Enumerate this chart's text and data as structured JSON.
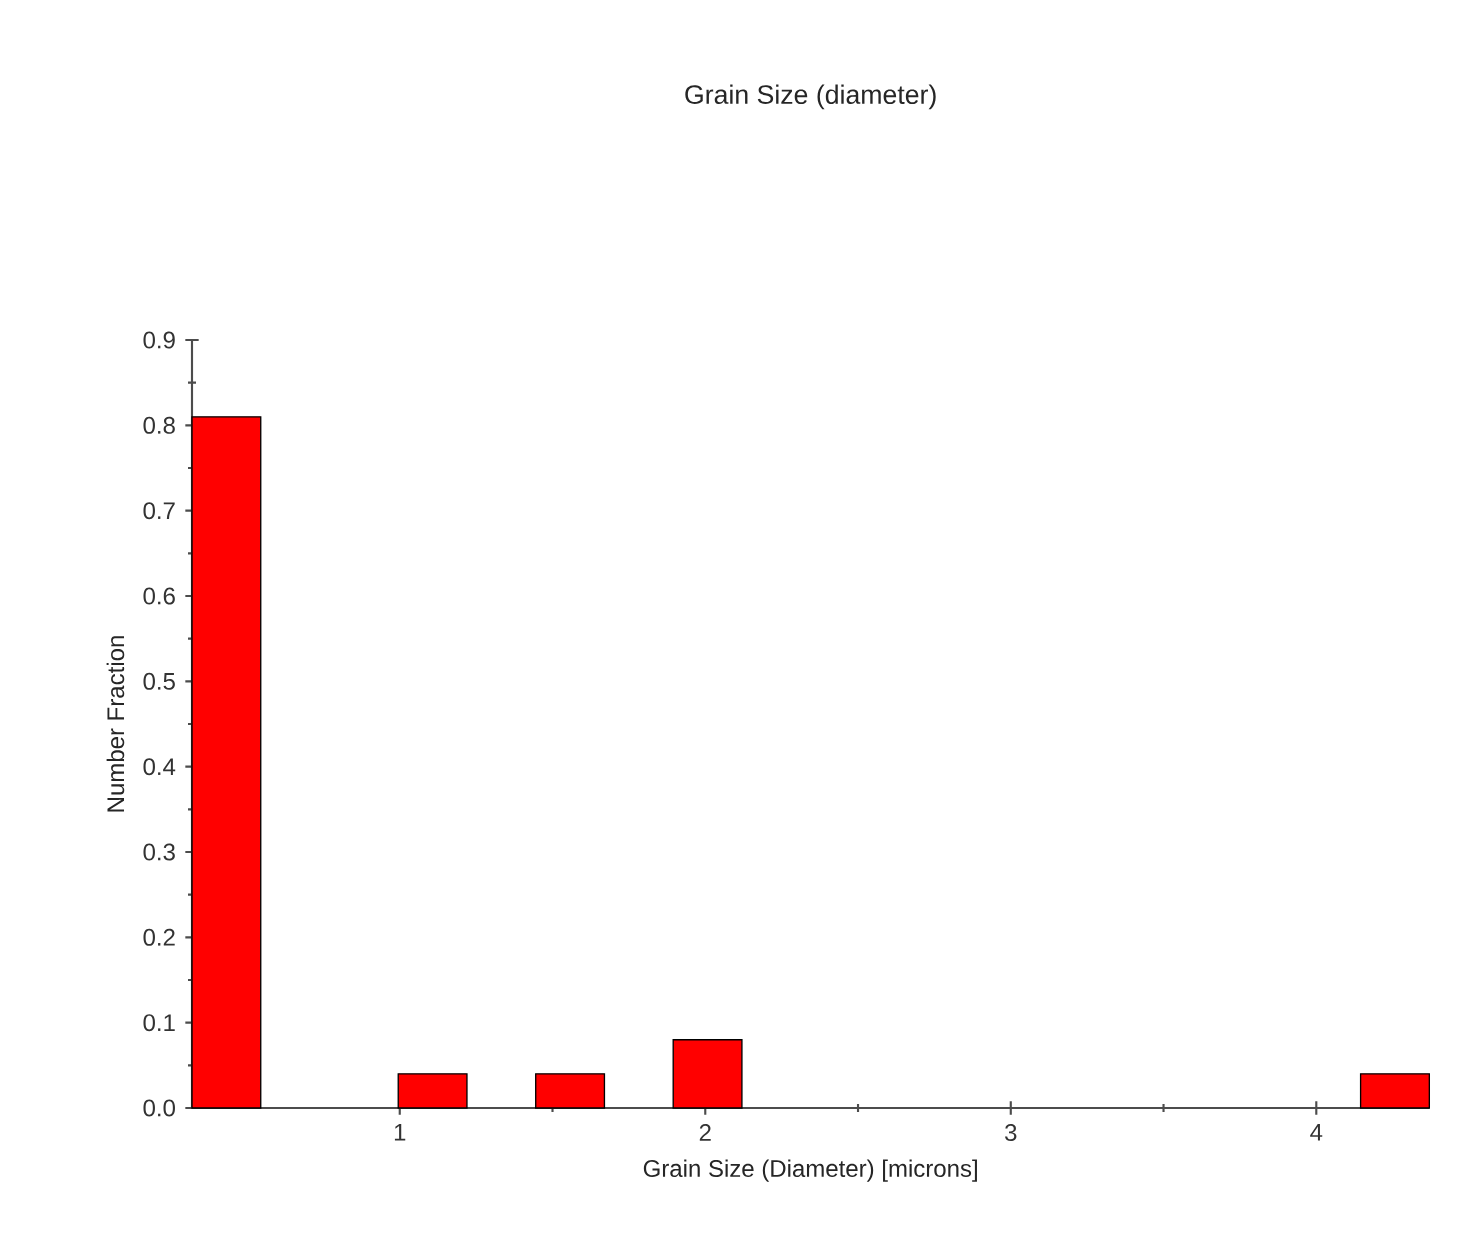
{
  "chart_data": {
    "type": "histogram",
    "title": "Grain Size (diameter)",
    "xlabel": "Grain Size (Diameter) [microns]",
    "ylabel": "Number Fraction",
    "bins": [
      0.32,
      0.545,
      0.77,
      0.995,
      1.22,
      1.445,
      1.67,
      1.895,
      2.12,
      2.345,
      2.57,
      2.795,
      3.02,
      3.245,
      3.47,
      3.695,
      3.92,
      4.145,
      4.37
    ],
    "values": [
      0.81,
      0,
      0,
      0.04,
      0,
      0.04,
      0,
      0.08,
      0,
      0,
      0,
      0,
      0,
      0,
      0,
      0,
      0,
      0.04
    ],
    "color": "#ff0000",
    "xlim": [
      0.32,
      4.37
    ],
    "ylim": [
      0,
      0.9
    ],
    "xticks": [
      1,
      2,
      3,
      4
    ],
    "yticks": [
      {
        "value": 0,
        "label": "0.0"
      },
      {
        "value": 0.1,
        "label": "0.1"
      },
      {
        "value": 0.2,
        "label": "0.2"
      },
      {
        "value": 0.3,
        "label": "0.3"
      },
      {
        "value": 0.4,
        "label": "0.4"
      },
      {
        "value": 0.5,
        "label": "0.5"
      },
      {
        "value": 0.6,
        "label": "0.6"
      },
      {
        "value": 0.7,
        "label": "0.7"
      },
      {
        "value": 0.8,
        "label": "0.8"
      },
      {
        "value": 0.9,
        "label": "0.9"
      }
    ],
    "grid": false
  }
}
